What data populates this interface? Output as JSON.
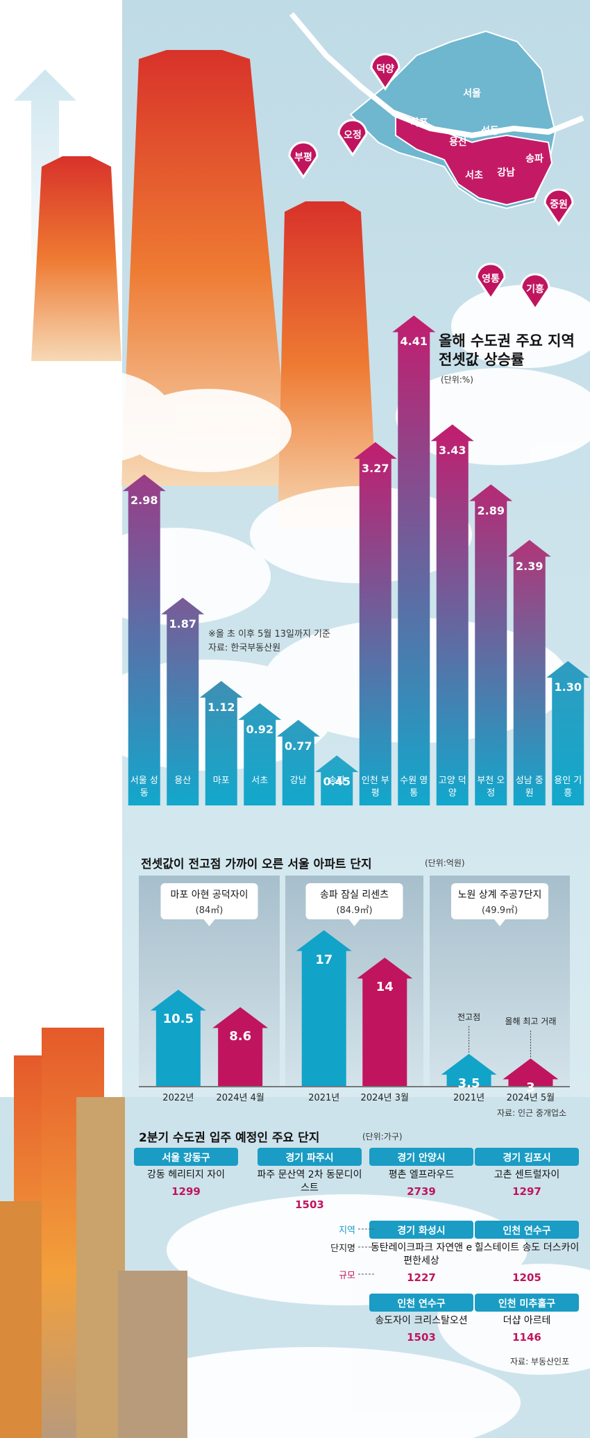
{
  "map": {
    "labels": [
      "덕양",
      "오정",
      "부평",
      "중원",
      "영통",
      "기흥",
      "서울",
      "마포",
      "용산",
      "성동",
      "서초",
      "강남",
      "송파"
    ]
  },
  "chart_data": [
    {
      "type": "bar",
      "title": "올해 수도권 주요 지역 전셋값 상승률",
      "unit": "(단위:%)",
      "categories": [
        "서울 성동",
        "용산",
        "마포",
        "서초",
        "강남",
        "송파",
        "인천 부평",
        "수원 영통",
        "고양 덕양",
        "부천 오정",
        "성남 중원",
        "용인 기흥"
      ],
      "values": [
        2.98,
        1.87,
        1.12,
        0.92,
        0.77,
        0.45,
        3.27,
        4.41,
        3.43,
        2.89,
        2.39,
        1.3
      ],
      "value_labels": [
        "2.98",
        "1.87",
        "1.12",
        "0.92",
        "0.77",
        "0.45",
        "3.27",
        "4.41",
        "3.43",
        "2.89",
        "2.39",
        "1.30"
      ],
      "colors": [
        "#9b3c86",
        "#7a5a96",
        "#3f8fb3",
        "#2f9cbf",
        "#2f9cbf",
        "#2aa5c6",
        "#c21d6e",
        "#c21d6e",
        "#c21d6e",
        "#b52a74",
        "#b03578",
        "#2f9cbf"
      ],
      "base_color": "#12a8cc",
      "ylim": [
        0,
        5
      ],
      "notes": [
        "※올 초 이후 5월 13일까지 기준",
        "자료: 한국부동산원"
      ]
    },
    {
      "type": "bar",
      "title": "전셋값이 전고점 가까이 오른 서울 아파트 단지",
      "unit": "(단위:억원)",
      "ylim": [
        0,
        20
      ],
      "colors": [
        "#12a3c9",
        "#c0145f"
      ],
      "panels": [
        {
          "name": "마포 아현 공덕자이",
          "size": "(84㎡)",
          "categories": [
            "2022년",
            "2024년 4월"
          ],
          "values": [
            10.5,
            8.6
          ]
        },
        {
          "name": "송파 잠실 리센츠",
          "size": "(84.9㎡)",
          "categories": [
            "2021년",
            "2024년 3월"
          ],
          "values": [
            17,
            14
          ]
        },
        {
          "name": "노원 상계 주공7단지",
          "size": "(49.9㎡)",
          "categories": [
            "2021년",
            "2024년 5월"
          ],
          "values": [
            3.5,
            3
          ],
          "annotations": [
            "전고점",
            "올해 최고 거래"
          ]
        }
      ],
      "source": "자료: 인근 중개업소"
    }
  ],
  "move_in": {
    "title": "2분기 수도권 입주 예정인 주요 단지",
    "unit": "(단위:가구)",
    "legend": [
      "지역",
      "단지명",
      "규모"
    ],
    "items": [
      {
        "region": "서울 강동구",
        "name": "강동 헤리티지 자이",
        "units": "1299"
      },
      {
        "region": "경기 파주시",
        "name": "파주 문산역 2차 동문디이스트",
        "units": "1503"
      },
      {
        "region": "경기 안양시",
        "name": "평촌 엘프라우드",
        "units": "2739"
      },
      {
        "region": "경기 김포시",
        "name": "고촌 센트럴자이",
        "units": "1297"
      },
      {
        "region": "경기 화성시",
        "name": "동탄레이크파크 자연앤 e편한세상",
        "units": "1227"
      },
      {
        "region": "인천 연수구",
        "name": "힐스테이트 송도 더스카이",
        "units": "1205"
      },
      {
        "region": "인천 연수구",
        "name": "송도자이 크리스탈오션",
        "units": "1503"
      },
      {
        "region": "인천 미추홀구",
        "name": "더샵 아르테",
        "units": "1146"
      }
    ],
    "source": "자료: 부동산인포"
  }
}
